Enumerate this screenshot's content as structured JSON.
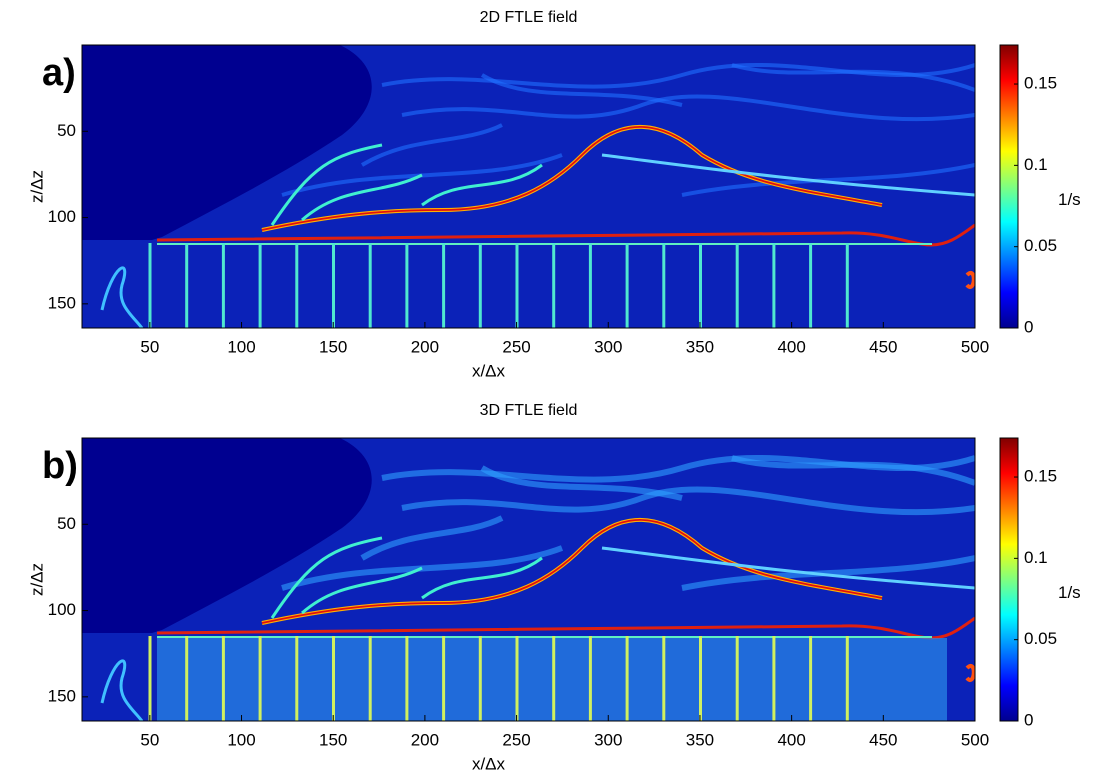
{
  "chart_data": [
    {
      "type": "heatmap",
      "title": "2D FTLE field",
      "panel_label": "a)",
      "xlabel": "x/Δx",
      "ylabel": "z/Δz",
      "xlim": [
        13,
        500
      ],
      "xticks": [
        50,
        100,
        150,
        200,
        250,
        300,
        350,
        400,
        450,
        500
      ],
      "ylim": [
        164,
        0
      ],
      "yticks": [
        50,
        100,
        150
      ],
      "colormap": "jet",
      "clim": [
        0,
        0.174
      ],
      "cticks": [
        0,
        0.05,
        0.1,
        0.15
      ],
      "colorbar_label": "1/s"
    },
    {
      "type": "heatmap",
      "title": "3D FTLE field",
      "panel_label": "b)",
      "xlabel": "x/Δx",
      "ylabel": "z/Δz",
      "xlim": [
        13,
        500
      ],
      "xticks": [
        50,
        100,
        150,
        200,
        250,
        300,
        350,
        400,
        450,
        500
      ],
      "ylim": [
        164,
        0
      ],
      "yticks": [
        50,
        100,
        150
      ],
      "colormap": "jet",
      "clim": [
        0,
        0.174
      ],
      "cticks": [
        0,
        0.05,
        0.1,
        0.15
      ],
      "colorbar_label": "1/s"
    }
  ]
}
